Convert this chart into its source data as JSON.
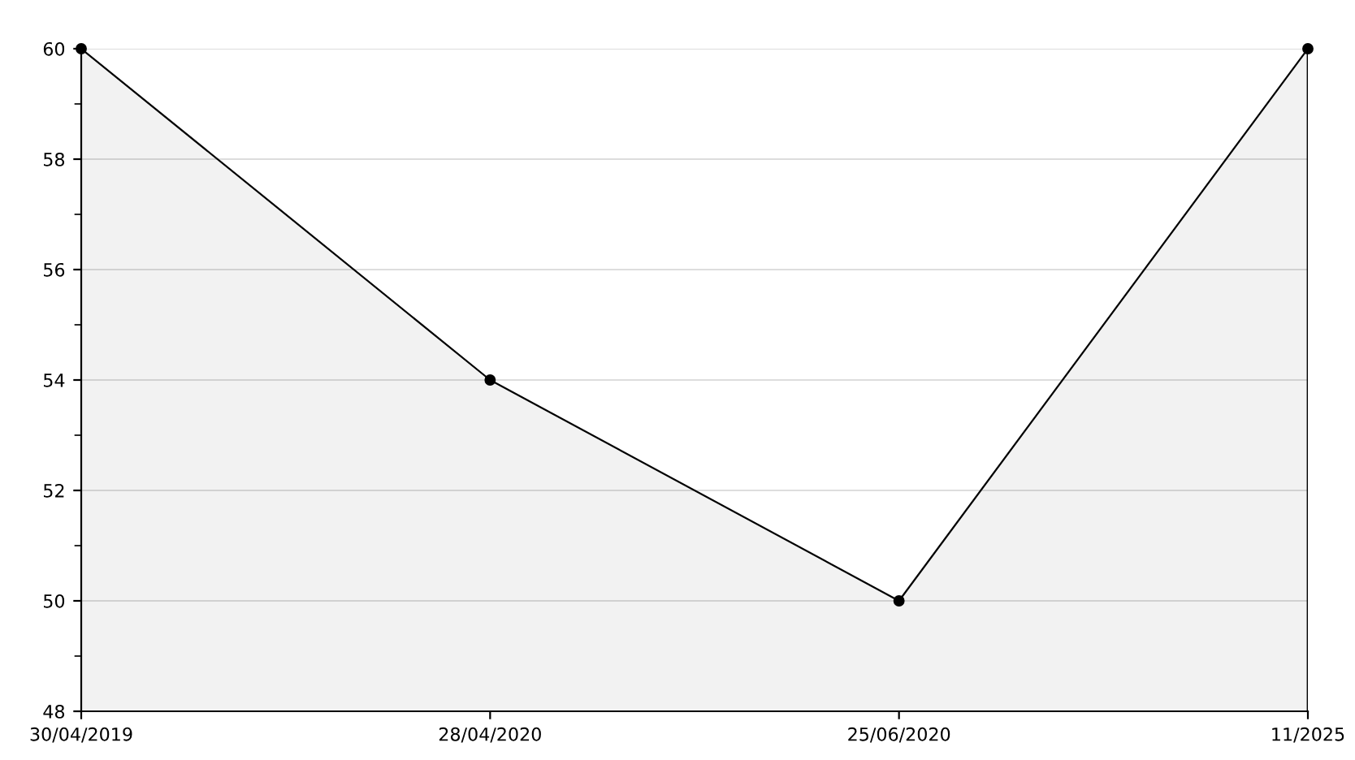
{
  "chart_data": {
    "type": "area",
    "categories": [
      "30/04/2019",
      "28/04/2020",
      "25/06/2020",
      "11/2025"
    ],
    "series": [
      {
        "color": "#000000",
        "values": [
          60,
          54,
          50,
          60
        ]
      }
    ],
    "ylim": [
      48,
      60
    ],
    "yticks": [
      48,
      50,
      52,
      54,
      56,
      58,
      60
    ],
    "grid": "y",
    "marker": "circle",
    "line_style": "solid"
  }
}
